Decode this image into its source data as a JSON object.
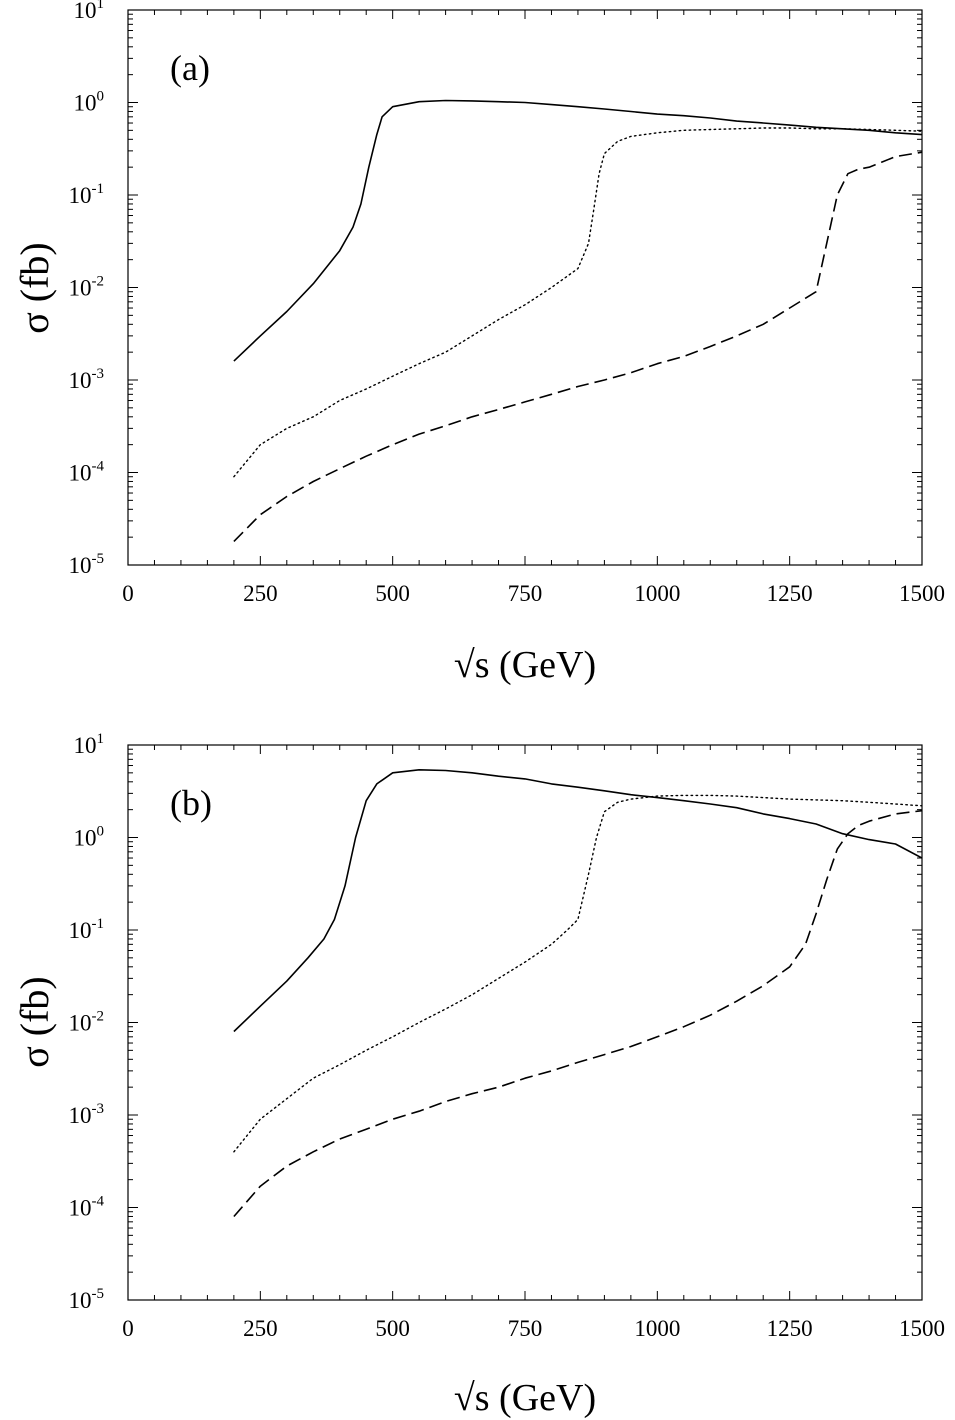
{
  "chart_data": [
    {
      "type": "line",
      "panel_label": "(a)",
      "xlabel": "√s  (GeV)",
      "ylabel": "σ  (fb)",
      "y_scale": "log",
      "xlim": [
        0,
        1500
      ],
      "ylim": [
        1e-05,
        10
      ],
      "x_ticks": [
        "0",
        "250",
        "500",
        "750",
        "1000",
        "1250",
        "1500"
      ],
      "y_ticks": [
        "10-5",
        "10-4",
        "10-3",
        "10-2",
        "10-1",
        "100",
        "101"
      ],
      "series": [
        {
          "style": "solid",
          "points": [
            [
              200,
              0.0016
            ],
            [
              250,
              0.003
            ],
            [
              300,
              0.0055
            ],
            [
              350,
              0.011
            ],
            [
              400,
              0.025
            ],
            [
              425,
              0.045
            ],
            [
              440,
              0.08
            ],
            [
              455,
              0.2
            ],
            [
              470,
              0.45
            ],
            [
              480,
              0.7
            ],
            [
              500,
              0.9
            ],
            [
              550,
              1.02
            ],
            [
              600,
              1.05
            ],
            [
              650,
              1.04
            ],
            [
              700,
              1.02
            ],
            [
              750,
              1.0
            ],
            [
              800,
              0.95
            ],
            [
              850,
              0.9
            ],
            [
              900,
              0.85
            ],
            [
              950,
              0.8
            ],
            [
              1000,
              0.75
            ],
            [
              1050,
              0.72
            ],
            [
              1100,
              0.68
            ],
            [
              1150,
              0.63
            ],
            [
              1200,
              0.6
            ],
            [
              1250,
              0.57
            ],
            [
              1300,
              0.54
            ],
            [
              1350,
              0.52
            ],
            [
              1400,
              0.5
            ],
            [
              1450,
              0.47
            ],
            [
              1500,
              0.45
            ]
          ]
        },
        {
          "style": "dotted",
          "points": [
            [
              200,
              9e-05
            ],
            [
              250,
              0.0002
            ],
            [
              300,
              0.0003
            ],
            [
              350,
              0.0004
            ],
            [
              400,
              0.0006
            ],
            [
              450,
              0.0008
            ],
            [
              500,
              0.0011
            ],
            [
              550,
              0.0015
            ],
            [
              600,
              0.002
            ],
            [
              650,
              0.003
            ],
            [
              700,
              0.0045
            ],
            [
              750,
              0.0065
            ],
            [
              800,
              0.01
            ],
            [
              850,
              0.016
            ],
            [
              870,
              0.03
            ],
            [
              880,
              0.07
            ],
            [
              890,
              0.17
            ],
            [
              900,
              0.28
            ],
            [
              925,
              0.38
            ],
            [
              950,
              0.43
            ],
            [
              1000,
              0.47
            ],
            [
              1050,
              0.5
            ],
            [
              1100,
              0.51
            ],
            [
              1150,
              0.52
            ],
            [
              1200,
              0.53
            ],
            [
              1250,
              0.53
            ],
            [
              1300,
              0.52
            ],
            [
              1350,
              0.52
            ],
            [
              1400,
              0.51
            ],
            [
              1450,
              0.5
            ],
            [
              1500,
              0.49
            ]
          ]
        },
        {
          "style": "dashed",
          "points": [
            [
              200,
              1.8e-05
            ],
            [
              250,
              3.5e-05
            ],
            [
              300,
              5.5e-05
            ],
            [
              350,
              8e-05
            ],
            [
              400,
              0.00011
            ],
            [
              450,
              0.00015
            ],
            [
              500,
              0.0002
            ],
            [
              550,
              0.00026
            ],
            [
              600,
              0.00032
            ],
            [
              650,
              0.0004
            ],
            [
              700,
              0.00048
            ],
            [
              750,
              0.00058
            ],
            [
              800,
              0.0007
            ],
            [
              850,
              0.00085
            ],
            [
              900,
              0.001
            ],
            [
              950,
              0.0012
            ],
            [
              1000,
              0.0015
            ],
            [
              1050,
              0.0018
            ],
            [
              1100,
              0.0023
            ],
            [
              1150,
              0.003
            ],
            [
              1200,
              0.004
            ],
            [
              1250,
              0.006
            ],
            [
              1300,
              0.009
            ],
            [
              1320,
              0.03
            ],
            [
              1340,
              0.1
            ],
            [
              1360,
              0.17
            ],
            [
              1380,
              0.19
            ],
            [
              1400,
              0.2
            ],
            [
              1450,
              0.26
            ],
            [
              1500,
              0.29
            ]
          ]
        }
      ]
    },
    {
      "type": "line",
      "panel_label": "(b)",
      "xlabel": "√s  (GeV)",
      "ylabel": "σ  (fb)",
      "y_scale": "log",
      "xlim": [
        0,
        1500
      ],
      "ylim": [
        1e-05,
        10
      ],
      "x_ticks": [
        "0",
        "250",
        "500",
        "750",
        "1000",
        "1250",
        "1500"
      ],
      "y_ticks": [
        "10-5",
        "10-4",
        "10-3",
        "10-2",
        "10-1",
        "100",
        "101"
      ],
      "series": [
        {
          "style": "solid",
          "points": [
            [
              200,
              0.008
            ],
            [
              250,
              0.015
            ],
            [
              300,
              0.028
            ],
            [
              340,
              0.05
            ],
            [
              370,
              0.08
            ],
            [
              390,
              0.13
            ],
            [
              410,
              0.3
            ],
            [
              430,
              1.0
            ],
            [
              450,
              2.5
            ],
            [
              470,
              3.8
            ],
            [
              500,
              5.0
            ],
            [
              550,
              5.4
            ],
            [
              600,
              5.3
            ],
            [
              650,
              5.0
            ],
            [
              700,
              4.6
            ],
            [
              750,
              4.3
            ],
            [
              800,
              3.8
            ],
            [
              850,
              3.5
            ],
            [
              900,
              3.2
            ],
            [
              950,
              2.9
            ],
            [
              1000,
              2.7
            ],
            [
              1050,
              2.5
            ],
            [
              1100,
              2.3
            ],
            [
              1150,
              2.1
            ],
            [
              1200,
              1.8
            ],
            [
              1250,
              1.6
            ],
            [
              1300,
              1.4
            ],
            [
              1350,
              1.1
            ],
            [
              1400,
              0.95
            ],
            [
              1450,
              0.85
            ],
            [
              1500,
              0.6
            ]
          ]
        },
        {
          "style": "dotted",
          "points": [
            [
              200,
              0.0004
            ],
            [
              250,
              0.0009
            ],
            [
              300,
              0.0015
            ],
            [
              350,
              0.0025
            ],
            [
              400,
              0.0035
            ],
            [
              450,
              0.005
            ],
            [
              500,
              0.007
            ],
            [
              550,
              0.01
            ],
            [
              600,
              0.014
            ],
            [
              650,
              0.02
            ],
            [
              700,
              0.03
            ],
            [
              750,
              0.045
            ],
            [
              800,
              0.07
            ],
            [
              830,
              0.1
            ],
            [
              850,
              0.13
            ],
            [
              870,
              0.4
            ],
            [
              885,
              1.0
            ],
            [
              900,
              1.9
            ],
            [
              925,
              2.4
            ],
            [
              950,
              2.6
            ],
            [
              1000,
              2.8
            ],
            [
              1050,
              2.85
            ],
            [
              1100,
              2.85
            ],
            [
              1150,
              2.8
            ],
            [
              1200,
              2.7
            ],
            [
              1250,
              2.6
            ],
            [
              1300,
              2.55
            ],
            [
              1350,
              2.5
            ],
            [
              1400,
              2.4
            ],
            [
              1450,
              2.3
            ],
            [
              1500,
              2.2
            ]
          ]
        },
        {
          "style": "dashed",
          "points": [
            [
              200,
              8e-05
            ],
            [
              250,
              0.00017
            ],
            [
              300,
              0.00028
            ],
            [
              350,
              0.0004
            ],
            [
              400,
              0.00055
            ],
            [
              450,
              0.0007
            ],
            [
              500,
              0.0009
            ],
            [
              550,
              0.0011
            ],
            [
              600,
              0.0014
            ],
            [
              650,
              0.0017
            ],
            [
              700,
              0.002
            ],
            [
              750,
              0.0025
            ],
            [
              800,
              0.003
            ],
            [
              850,
              0.0037
            ],
            [
              900,
              0.0045
            ],
            [
              950,
              0.0055
            ],
            [
              1000,
              0.007
            ],
            [
              1050,
              0.009
            ],
            [
              1100,
              0.012
            ],
            [
              1150,
              0.017
            ],
            [
              1200,
              0.025
            ],
            [
              1250,
              0.04
            ],
            [
              1280,
              0.07
            ],
            [
              1300,
              0.15
            ],
            [
              1320,
              0.35
            ],
            [
              1340,
              0.75
            ],
            [
              1360,
              1.1
            ],
            [
              1380,
              1.35
            ],
            [
              1400,
              1.5
            ],
            [
              1450,
              1.8
            ],
            [
              1500,
              1.95
            ]
          ]
        }
      ]
    }
  ]
}
